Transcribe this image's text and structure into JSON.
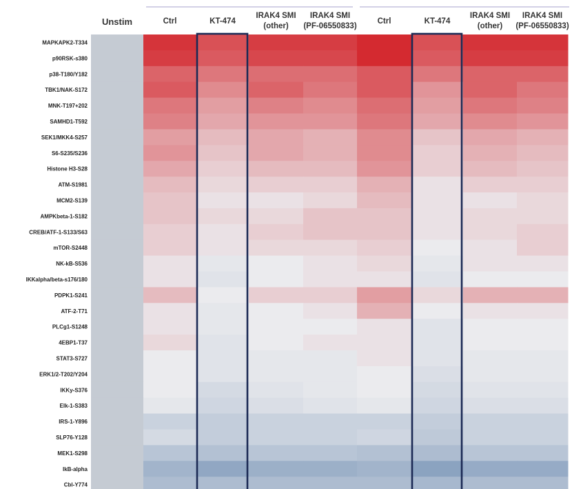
{
  "chart_data": {
    "type": "heatmap",
    "title": "",
    "xlabel": "",
    "ylabel": "",
    "columns": [
      "Unstim",
      "Ctrl",
      "KT-474",
      "IRAK4 SMI\n(other)",
      "IRAK4 SMI\n(PF-06550833)",
      "Ctrl",
      "KT-474",
      "IRAK4 SMI\n(other)",
      "IRAK4 SMI\n(PF-06550833)"
    ],
    "rows": [
      "MAPKAPK2-T334",
      "p90RSK-s380",
      "p38-T180/Y182",
      "TBK1/NAK-S172",
      "MNK-T197+202",
      "SAMHD1-T592",
      "SEK1/MKK4-S257",
      "S6-S235/S236",
      "Histone H3-S28",
      "ATM-S1981",
      "MCM2-S139",
      "AMPKbeta-1-S182",
      "CREB/ATF-1-S133/S63",
      "mTOR-S2448",
      "NK-kB-S536",
      "IKKalpha/beta-s176/180",
      "PDPK1-S241",
      "ATF-2-T71",
      "PLCg1-S1248",
      "4EBP1-T37",
      "STAT3-S727",
      "ERK1/2-T202/Y204",
      "IKKy-S376",
      "Elk-1-S383",
      "IRS-1-Y896",
      "SLP76-Y128",
      "MEK1-S298",
      "IkB-alpha",
      "Cbl-Y774"
    ],
    "values": [
      [
        0,
        0.95,
        0.8,
        0.9,
        0.9,
        1.0,
        0.8,
        0.95,
        0.95
      ],
      [
        0,
        0.9,
        0.75,
        0.85,
        0.85,
        1.0,
        0.75,
        0.9,
        0.9
      ],
      [
        0,
        0.7,
        0.6,
        0.65,
        0.65,
        0.75,
        0.6,
        0.7,
        0.7
      ],
      [
        0,
        0.75,
        0.5,
        0.7,
        0.6,
        0.75,
        0.45,
        0.7,
        0.6
      ],
      [
        0,
        0.6,
        0.4,
        0.55,
        0.5,
        0.65,
        0.4,
        0.6,
        0.55
      ],
      [
        0,
        0.55,
        0.35,
        0.45,
        0.45,
        0.6,
        0.35,
        0.5,
        0.45
      ],
      [
        0,
        0.4,
        0.25,
        0.35,
        0.3,
        0.5,
        0.2,
        0.35,
        0.3
      ],
      [
        0,
        0.45,
        0.2,
        0.35,
        0.3,
        0.5,
        0.15,
        0.3,
        0.25
      ],
      [
        0,
        0.35,
        0.15,
        0.25,
        0.25,
        0.45,
        0.15,
        0.25,
        0.2
      ],
      [
        0,
        0.25,
        0.1,
        0.15,
        0.15,
        0.3,
        0.05,
        0.15,
        0.15
      ],
      [
        0,
        0.2,
        0.05,
        0.05,
        0.1,
        0.25,
        0.05,
        0.05,
        0.1
      ],
      [
        0,
        0.2,
        0.1,
        0.1,
        0.2,
        0.2,
        0.05,
        0.1,
        0.1
      ],
      [
        0,
        0.15,
        0.05,
        0.15,
        0.2,
        0.2,
        0.05,
        0.1,
        0.15
      ],
      [
        0,
        0.15,
        0.05,
        0.1,
        0.1,
        0.15,
        0.0,
        0.05,
        0.15
      ],
      [
        0,
        0.05,
        -0.05,
        0.0,
        0.05,
        0.1,
        -0.05,
        0.05,
        0.05
      ],
      [
        0,
        0.05,
        -0.1,
        0.0,
        0.05,
        0.05,
        -0.1,
        0.0,
        0.0
      ],
      [
        0,
        0.25,
        0.0,
        0.15,
        0.15,
        0.4,
        0.1,
        0.3,
        0.3
      ],
      [
        0,
        0.05,
        -0.05,
        0.0,
        0.05,
        0.3,
        0.0,
        0.05,
        0.05
      ],
      [
        0,
        0.05,
        -0.05,
        0.0,
        0.0,
        0.05,
        -0.1,
        0.0,
        0.0
      ],
      [
        0,
        0.1,
        -0.1,
        0.0,
        0.05,
        0.05,
        -0.1,
        0.0,
        0.0
      ],
      [
        0,
        0.0,
        -0.1,
        -0.05,
        -0.05,
        0.05,
        -0.1,
        -0.05,
        -0.05
      ],
      [
        0,
        0.0,
        -0.1,
        -0.05,
        -0.05,
        0.0,
        -0.15,
        -0.05,
        -0.05
      ],
      [
        0,
        0.0,
        -0.2,
        -0.1,
        -0.05,
        0.0,
        -0.2,
        -0.1,
        -0.1
      ],
      [
        0,
        -0.05,
        -0.25,
        -0.15,
        -0.1,
        -0.05,
        -0.25,
        -0.15,
        -0.15
      ],
      [
        0,
        -0.3,
        -0.35,
        -0.3,
        -0.3,
        -0.3,
        -0.35,
        -0.3,
        -0.3
      ],
      [
        0,
        -0.2,
        -0.35,
        -0.3,
        -0.3,
        -0.25,
        -0.4,
        -0.3,
        -0.3
      ],
      [
        0,
        -0.45,
        -0.5,
        -0.45,
        -0.45,
        -0.5,
        -0.55,
        -0.45,
        -0.45
      ],
      [
        0,
        -0.65,
        -0.8,
        -0.7,
        -0.7,
        -0.65,
        -0.85,
        -0.75,
        -0.75
      ],
      [
        0,
        -0.55,
        -0.55,
        -0.55,
        -0.55,
        -0.55,
        -0.6,
        -0.55,
        -0.55
      ]
    ],
    "value_range": [
      -1,
      1
    ],
    "highlighted_columns": [
      "KT-474",
      "KT-474"
    ],
    "column_groups": 2,
    "colors": {
      "high": "#d42a30",
      "mid": "#ebebee",
      "low": "#7a96b8",
      "unstim": "#c5cbd3",
      "highlight_box": "#1c2a55",
      "group_line": "#b9b4d6"
    },
    "legend": "none",
    "grid": false
  }
}
